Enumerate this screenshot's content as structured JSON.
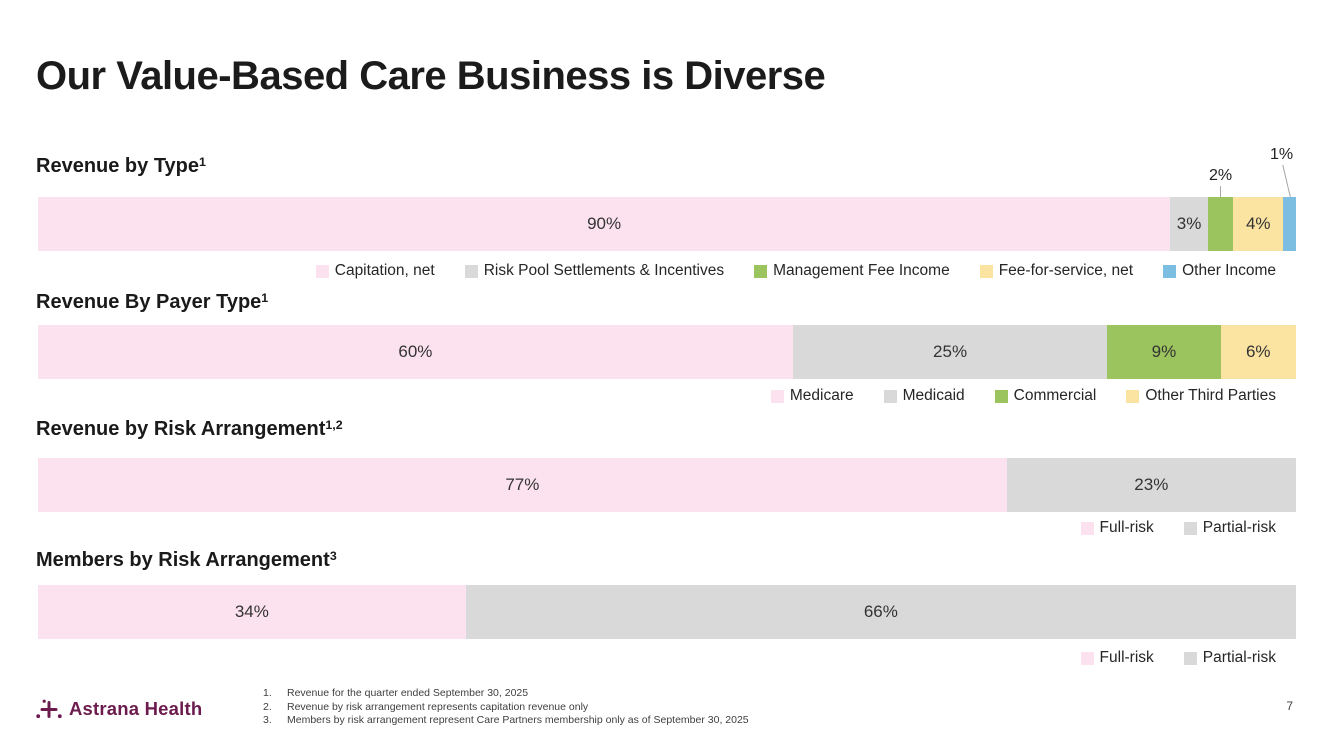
{
  "title": "Our Value-Based Care Business is Diverse",
  "colors": {
    "pink": "#FCE2EE",
    "gray": "#D9D9D9",
    "green": "#9CC45E",
    "yellow": "#FBE4A2",
    "blue": "#7CBEE2",
    "brand_plum": "#6B1B4D",
    "leader_line": "#A6A6A6",
    "title_text": "#1B1B1B"
  },
  "chart_data": [
    {
      "type": "bar",
      "orientation": "horizontal",
      "stacked": true,
      "unit": "percent",
      "title": "Revenue by Type",
      "title_superscript": "1",
      "legend_position": "bottom-right",
      "segments": [
        {
          "name": "Capitation, net",
          "value": 90,
          "label": "90%",
          "color": "#FCE2EE",
          "label_pos": "inside"
        },
        {
          "name": "Risk Pool Settlements & Incentives",
          "value": 3,
          "label": "3%",
          "color": "#D9D9D9",
          "label_pos": "inside"
        },
        {
          "name": "Management Fee Income",
          "value": 2,
          "label": "2%",
          "color": "#9CC45E",
          "label_pos": "callout-low"
        },
        {
          "name": "Fee-for-service, net",
          "value": 4,
          "label": "4%",
          "color": "#FBE4A2",
          "label_pos": "inside"
        },
        {
          "name": "Other Income",
          "value": 1,
          "label": "1%",
          "color": "#7CBEE2",
          "label_pos": "callout-high"
        }
      ]
    },
    {
      "type": "bar",
      "orientation": "horizontal",
      "stacked": true,
      "unit": "percent",
      "title": "Revenue By Payer Type",
      "title_superscript": "1",
      "legend_position": "bottom-right",
      "segments": [
        {
          "name": "Medicare",
          "value": 60,
          "label": "60%",
          "color": "#FCE2EE",
          "label_pos": "inside"
        },
        {
          "name": "Medicaid",
          "value": 25,
          "label": "25%",
          "color": "#D9D9D9",
          "label_pos": "inside"
        },
        {
          "name": "Commercial",
          "value": 9,
          "label": "9%",
          "color": "#9CC45E",
          "label_pos": "inside"
        },
        {
          "name": "Other Third Parties",
          "value": 6,
          "label": "6%",
          "color": "#FBE4A2",
          "label_pos": "inside"
        }
      ]
    },
    {
      "type": "bar",
      "orientation": "horizontal",
      "stacked": true,
      "unit": "percent",
      "title": "Revenue by Risk Arrangement",
      "title_superscript": "1,2",
      "legend_position": "bottom-right",
      "segments": [
        {
          "name": "Full-risk",
          "value": 77,
          "label": "77%",
          "color": "#FCE2EE",
          "label_pos": "inside"
        },
        {
          "name": "Partial-risk",
          "value": 23,
          "label": "23%",
          "color": "#D9D9D9",
          "label_pos": "inside"
        }
      ]
    },
    {
      "type": "bar",
      "orientation": "horizontal",
      "stacked": true,
      "unit": "percent",
      "title": "Members by Risk Arrangement",
      "title_superscript": "3",
      "legend_position": "bottom-right",
      "segments": [
        {
          "name": "Full-risk",
          "value": 34,
          "label": "34%",
          "color": "#FCE2EE",
          "label_pos": "inside"
        },
        {
          "name": "Partial-risk",
          "value": 66,
          "label": "66%",
          "color": "#D9D9D9",
          "label_pos": "inside"
        }
      ]
    }
  ],
  "footnotes": [
    {
      "num": "1.",
      "text": "Revenue for the quarter ended September 30, 2025"
    },
    {
      "num": "2.",
      "text": "Revenue by risk arrangement represents capitation revenue only"
    },
    {
      "num": "3.",
      "text": "Members by risk arrangement represent Care Partners membership only as of September 30, 2025"
    }
  ],
  "footer": {
    "logo_text": "Astrana Health",
    "page_number": "7"
  }
}
